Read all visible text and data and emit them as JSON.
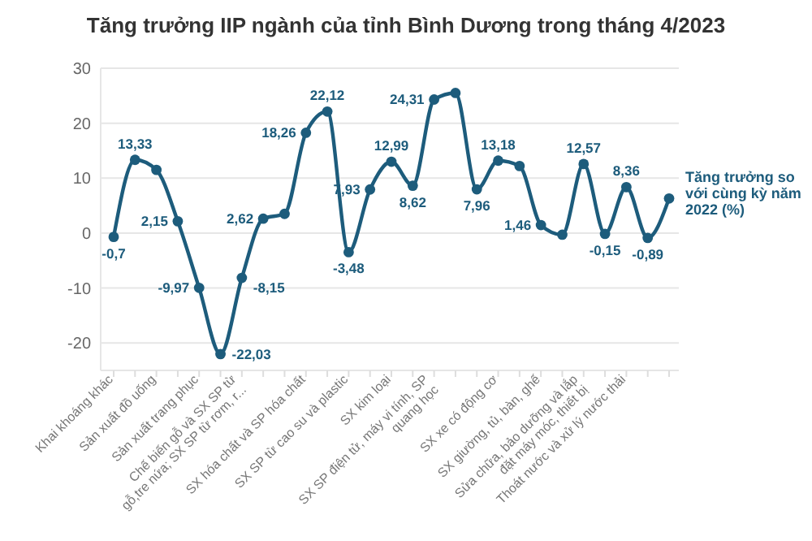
{
  "chart_data": {
    "type": "line",
    "title": "Tăng trưởng IIP ngành của tỉnh Bình Dương trong tháng 4/2023",
    "categories": [
      "Khai khoáng khác",
      null,
      "Sản xuất đồ uống",
      null,
      "Sản xuất trang phục",
      null,
      "Chế biến gỗ và SX SP từ\ngỗ,tre nứa; SX SP từ rơm, r...",
      null,
      null,
      "SX hóa chất và SP hóa chất",
      null,
      "SX SP từ cao su và plastic",
      null,
      "SX kim loại",
      null,
      "SX SP điện tử, máy vi tính, SP\nquang học",
      null,
      null,
      "SX xe có động cơ",
      null,
      "SX giường, tủ, bàn, ghế",
      null,
      "Sửa chữa, bảo dưỡng và lắp\nđặt máy móc, thiết bị",
      null,
      "Thoát nước và xử lý nước thải",
      null,
      null
    ],
    "series": [
      {
        "name": "Tăng trưởng so với cùng kỳ năm 2022 (%)",
        "color": "#1d5c7c",
        "values": [
          -0.7,
          13.33,
          11.5,
          2.15,
          -9.97,
          -22.03,
          -8.15,
          2.62,
          3.5,
          18.26,
          22.12,
          -3.48,
          7.93,
          12.99,
          8.62,
          24.31,
          25.5,
          7.96,
          13.18,
          12.2,
          1.46,
          -0.3,
          12.57,
          -0.15,
          8.36,
          -0.89,
          6.3
        ],
        "value_labels": [
          "-0,7",
          "13,33",
          null,
          "2,15",
          "-9,97",
          "-22,03",
          "-8,15",
          "2,62",
          null,
          "18,26",
          "22,12",
          "-3,48",
          "7,93",
          "12,99",
          "8,62",
          "24,31",
          null,
          "7,96",
          "13,18",
          null,
          "1,46",
          null,
          "12,57",
          "-0,15",
          "8,36",
          "-0,89",
          null
        ]
      }
    ],
    "ylim": [
      -25,
      30
    ],
    "yticks": [
      -20,
      -10,
      0,
      10,
      20,
      30
    ],
    "grid": "y",
    "legend": "right",
    "marker": "circle",
    "line_style": "solid"
  }
}
